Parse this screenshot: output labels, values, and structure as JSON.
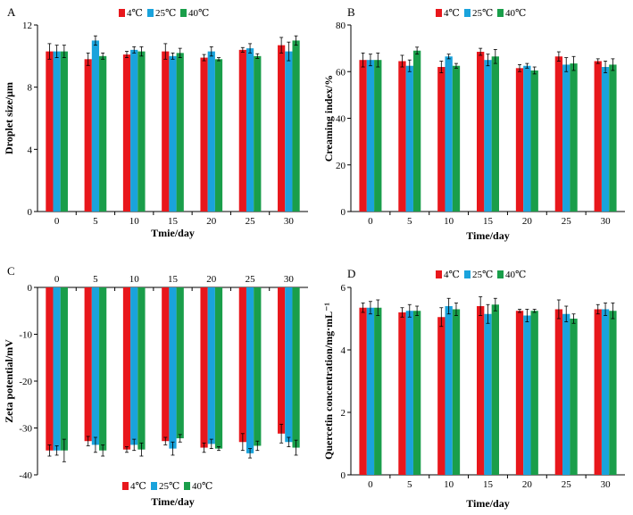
{
  "colors": {
    "s4": "#e8171c",
    "s25": "#1aa3dc",
    "s40": "#1a9e4a"
  },
  "chart_data": [
    {
      "panel": "A",
      "type": "bar",
      "xlabel": "Tmie/day",
      "ylabel": "Droplet size/μm",
      "categories": [
        "0",
        "5",
        "10",
        "15",
        "20",
        "25",
        "30"
      ],
      "ylim": [
        0,
        12
      ],
      "yticks": [
        "0",
        "4",
        "8",
        "12"
      ],
      "ytick_values": [
        0,
        4,
        8,
        12
      ],
      "legend": [
        "4℃",
        "25℃",
        "40℃"
      ],
      "series": [
        {
          "name": "4℃",
          "values": [
            10.3,
            9.8,
            10.1,
            10.3,
            9.9,
            10.4,
            10.7
          ],
          "errors": [
            0.5,
            0.4,
            0.2,
            0.5,
            0.2,
            0.15,
            0.5
          ]
        },
        {
          "name": "25℃",
          "values": [
            10.3,
            11.0,
            10.4,
            10.0,
            10.3,
            10.5,
            10.3
          ],
          "errors": [
            0.4,
            0.3,
            0.2,
            0.2,
            0.3,
            0.3,
            0.6
          ]
        },
        {
          "name": "40℃",
          "values": [
            10.3,
            10.0,
            10.3,
            10.2,
            9.8,
            10.0,
            11.0
          ],
          "errors": [
            0.4,
            0.2,
            0.3,
            0.3,
            0.1,
            0.15,
            0.3
          ]
        }
      ]
    },
    {
      "panel": "B",
      "type": "bar",
      "xlabel": "Time/day",
      "ylabel": "Creaming index/%",
      "categories": [
        "0",
        "5",
        "10",
        "15",
        "20",
        "25",
        "30"
      ],
      "ylim": [
        0,
        80
      ],
      "yticks": [
        "0",
        "20",
        "40",
        "60",
        "80"
      ],
      "ytick_values": [
        0,
        20,
        40,
        60,
        80
      ],
      "legend": [
        "4℃",
        "25℃",
        "40℃"
      ],
      "series": [
        {
          "name": "4℃",
          "values": [
            65.0,
            64.5,
            62.0,
            68.5,
            61.5,
            66.5,
            64.5
          ],
          "errors": [
            3.0,
            2.5,
            2.5,
            1.5,
            1.5,
            2.0,
            1.0
          ]
        },
        {
          "name": "25℃",
          "values": [
            65.0,
            62.5,
            66.5,
            65.0,
            62.5,
            63.0,
            62.0
          ],
          "errors": [
            2.5,
            2.5,
            1.0,
            2.5,
            1.0,
            3.0,
            2.5
          ]
        },
        {
          "name": "40℃",
          "values": [
            65.0,
            69.0,
            62.5,
            66.5,
            60.5,
            63.5,
            63.0
          ],
          "errors": [
            3.0,
            1.5,
            1.0,
            3.0,
            1.5,
            3.0,
            2.5
          ]
        }
      ]
    },
    {
      "panel": "C",
      "type": "bar",
      "xlabel": "Time/day",
      "ylabel": "Zeta potential/mV",
      "categories": [
        "0",
        "5",
        "10",
        "15",
        "20",
        "25",
        "30"
      ],
      "ylim": [
        -40,
        0
      ],
      "yticks": [
        "0",
        "-10",
        "-20",
        "-30",
        "-40"
      ],
      "ytick_values": [
        0,
        -10,
        -20,
        -30,
        -40
      ],
      "legend": [
        "4℃",
        "25℃",
        "40℃"
      ],
      "series": [
        {
          "name": "4℃",
          "values": [
            -34.8,
            -32.8,
            -34.6,
            -32.8,
            -34.2,
            -33.0,
            -31.2
          ],
          "errors": [
            1.2,
            1.0,
            0.6,
            0.8,
            1.0,
            1.8,
            2.0
          ]
        },
        {
          "name": "25℃",
          "values": [
            -34.8,
            -33.6,
            -33.6,
            -34.4,
            -33.4,
            -35.4,
            -33.0
          ],
          "errors": [
            1.0,
            1.6,
            1.2,
            1.4,
            1.0,
            1.0,
            1.0
          ]
        },
        {
          "name": "40℃",
          "values": [
            -34.8,
            -34.8,
            -34.6,
            -32.2,
            -34.4,
            -33.8,
            -34.2
          ],
          "errors": [
            2.4,
            1.2,
            1.4,
            0.8,
            0.4,
            1.0,
            1.6
          ]
        }
      ]
    },
    {
      "panel": "D",
      "type": "bar",
      "xlabel": "Time/day",
      "ylabel": "Quercetin concentration/mg·mL⁻¹",
      "categories": [
        "0",
        "5",
        "10",
        "15",
        "20",
        "25",
        "30"
      ],
      "ylim": [
        0,
        6
      ],
      "yticks": [
        "0",
        "2",
        "4",
        "6"
      ],
      "ytick_values": [
        0,
        2,
        4,
        6
      ],
      "legend": [
        "4℃",
        "25℃",
        "40℃"
      ],
      "series": [
        {
          "name": "4℃",
          "values": [
            5.35,
            5.2,
            5.05,
            5.4,
            5.25,
            5.3,
            5.3
          ],
          "errors": [
            0.15,
            0.15,
            0.3,
            0.3,
            0.05,
            0.3,
            0.15
          ]
        },
        {
          "name": "25℃",
          "values": [
            5.35,
            5.25,
            5.4,
            5.15,
            5.1,
            5.15,
            5.3
          ],
          "errors": [
            0.2,
            0.2,
            0.25,
            0.3,
            0.2,
            0.25,
            0.2
          ]
        },
        {
          "name": "40℃",
          "values": [
            5.35,
            5.25,
            5.3,
            5.45,
            5.25,
            5.0,
            5.25
          ],
          "errors": [
            0.25,
            0.15,
            0.2,
            0.2,
            0.05,
            0.15,
            0.25
          ]
        }
      ]
    }
  ]
}
